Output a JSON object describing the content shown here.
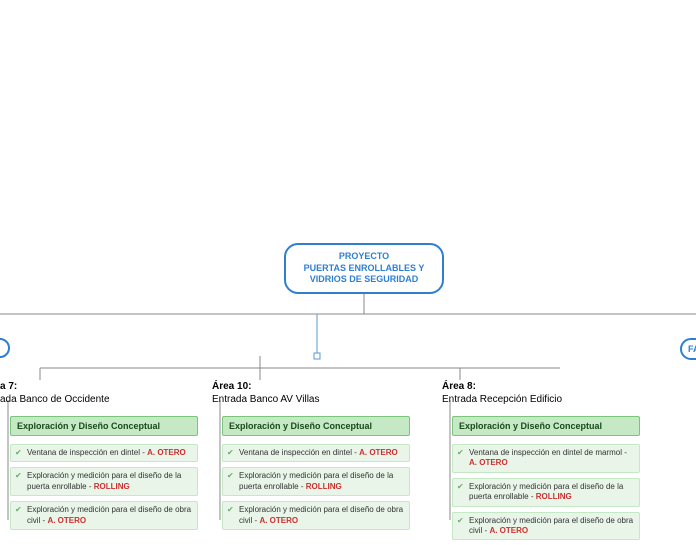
{
  "root": {
    "line1": "PROYECTO",
    "line2": "PUERTAS ENROLLABLES Y",
    "line3": "VIDRIOS DE SEGURIDAD"
  },
  "rightPill": "FA",
  "branches": [
    {
      "titleA": "a 7:",
      "titleB": "ada Banco de Occidente",
      "phase": "Exploración y Diseño Conceptual",
      "tasks": [
        {
          "text": "Ventana de inspección en dintel - ",
          "em": "A. OTERO"
        },
        {
          "text": "Exploración y medición para el diseño de la puerta enrollable - ",
          "em": "ROLLING"
        },
        {
          "text": "Exploración y medición para el diseño de obra civil - ",
          "em": "A. OTERO"
        }
      ]
    },
    {
      "titleA": "Área 10:",
      "titleB": "Entrada Banco AV Villas",
      "phase": "Exploración y Diseño Conceptual",
      "tasks": [
        {
          "text": "Ventana de inspección en dintel - ",
          "em": "A. OTERO"
        },
        {
          "text": "Exploración y medición para el diseño de la puerta enrollable - ",
          "em": "ROLLING"
        },
        {
          "text": "Exploración y medición para el diseño de obra civil - ",
          "em": "A. OTERO"
        }
      ]
    },
    {
      "titleA": "Área 8:",
      "titleB": "Entrada Recepción Edificio",
      "phase": "Exploración y Diseño Conceptual",
      "tasks": [
        {
          "text": "Ventana de inspección en dintel de marmol - ",
          "em": "A. OTERO"
        },
        {
          "text": "Exploración y medición para el diseño de la puerta enrollable - ",
          "em": "ROLLING"
        },
        {
          "text": "Exploración y medición para el diseño de obra civil - ",
          "em": "A. OTERO"
        }
      ]
    }
  ],
  "style": {
    "rootBorder": "#2e7fd1",
    "phaseBg": "#c5e8c5",
    "taskBg": "#e8f5e8",
    "emColor": "#cc3030",
    "lineColor": "#888888",
    "blueLine": "#5a9bd5"
  },
  "layout": {
    "branchX": [
      -2,
      210,
      440
    ],
    "branchY": 380
  }
}
